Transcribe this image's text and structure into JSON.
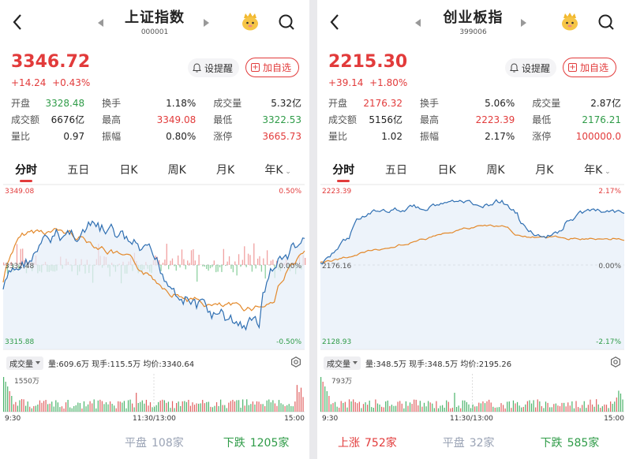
{
  "left": {
    "title": "上证指数",
    "code": "000001",
    "price": "3346.72",
    "change": "+14.24",
    "change_pct": "+0.43%",
    "alert_label": "设提醒",
    "fav_label": "加自选",
    "stats": [
      [
        {
          "k": "开盘",
          "v": "3328.48",
          "c": "green"
        },
        {
          "k": "换手",
          "v": "1.18%",
          "c": ""
        },
        {
          "k": "成交量",
          "v": "5.32亿",
          "c": ""
        }
      ],
      [
        {
          "k": "成交额",
          "v": "6676亿",
          "c": ""
        },
        {
          "k": "最高",
          "v": "3349.08",
          "c": "red"
        },
        {
          "k": "最低",
          "v": "3322.53",
          "c": "green"
        }
      ],
      [
        {
          "k": "量比",
          "v": "0.97",
          "c": ""
        },
        {
          "k": "振幅",
          "v": "0.80%",
          "c": ""
        },
        {
          "k": "涨停",
          "v": "3665.73",
          "c": "red"
        }
      ]
    ],
    "tabs": [
      "分时",
      "五日",
      "日K",
      "周K",
      "月K",
      "年K"
    ],
    "chart": {
      "top": "3349.08",
      "mid": "3332.48",
      "bottom": "3315.88",
      "pct_top": "0.50%",
      "pct_mid": "0.00%",
      "pct_bottom": "-0.50%"
    },
    "volume": {
      "label": "成交量",
      "info": "量:609.6万 现手:115.5万 均价:3340.64",
      "max": "1550万"
    },
    "times": [
      "9:30",
      "11:30/13:00",
      "15:00"
    ],
    "foot": [
      {
        "k": "平盘",
        "v": "108家",
        "color": "#9aa3b5"
      },
      {
        "k": "下跌",
        "v": "1205家",
        "color": "#2e9b47"
      }
    ]
  },
  "right": {
    "title": "创业板指",
    "code": "399006",
    "price": "2215.30",
    "change": "+39.14",
    "change_pct": "+1.80%",
    "alert_label": "设提醒",
    "fav_label": "加自选",
    "stats": [
      [
        {
          "k": "开盘",
          "v": "2176.32",
          "c": "red"
        },
        {
          "k": "换手",
          "v": "5.06%",
          "c": ""
        },
        {
          "k": "成交量",
          "v": "2.87亿",
          "c": ""
        }
      ],
      [
        {
          "k": "成交额",
          "v": "5156亿",
          "c": ""
        },
        {
          "k": "最高",
          "v": "2223.39",
          "c": "red"
        },
        {
          "k": "最低",
          "v": "2176.21",
          "c": "green"
        }
      ],
      [
        {
          "k": "量比",
          "v": "1.02",
          "c": ""
        },
        {
          "k": "振幅",
          "v": "2.17%",
          "c": ""
        },
        {
          "k": "涨停",
          "v": "100000.0",
          "c": "red"
        }
      ]
    ],
    "tabs": [
      "分时",
      "五日",
      "日K",
      "周K",
      "月K",
      "年K"
    ],
    "chart": {
      "top": "2223.39",
      "mid": "2176.16",
      "bottom": "2128.93",
      "pct_top": "2.17%",
      "pct_mid": "0.00%",
      "pct_bottom": "-2.17%"
    },
    "volume": {
      "label": "成交量",
      "info": "量:348.5万 现手:348.5万 均价:2195.26",
      "max": "793万"
    },
    "times": [
      "9:30",
      "11:30/13:00",
      "15:00"
    ],
    "foot": [
      {
        "k": "上涨",
        "v": "752家",
        "color": "#e23b3b"
      },
      {
        "k": "平盘",
        "v": "32家",
        "color": "#9aa3b5"
      },
      {
        "k": "下跌",
        "v": "585家",
        "color": "#2e9b47"
      }
    ]
  },
  "colors": {
    "red": "#e23b3b",
    "green": "#2e9b47",
    "price_line": "#2f6fb2",
    "avg_line": "#e3892b",
    "area": "#e6eef8"
  },
  "icons": [
    "back-arrow-icon",
    "prev-triangle-icon",
    "next-triangle-icon",
    "mascot-icon",
    "search-icon",
    "bell-icon",
    "plus-square-icon",
    "gear-icon"
  ]
}
